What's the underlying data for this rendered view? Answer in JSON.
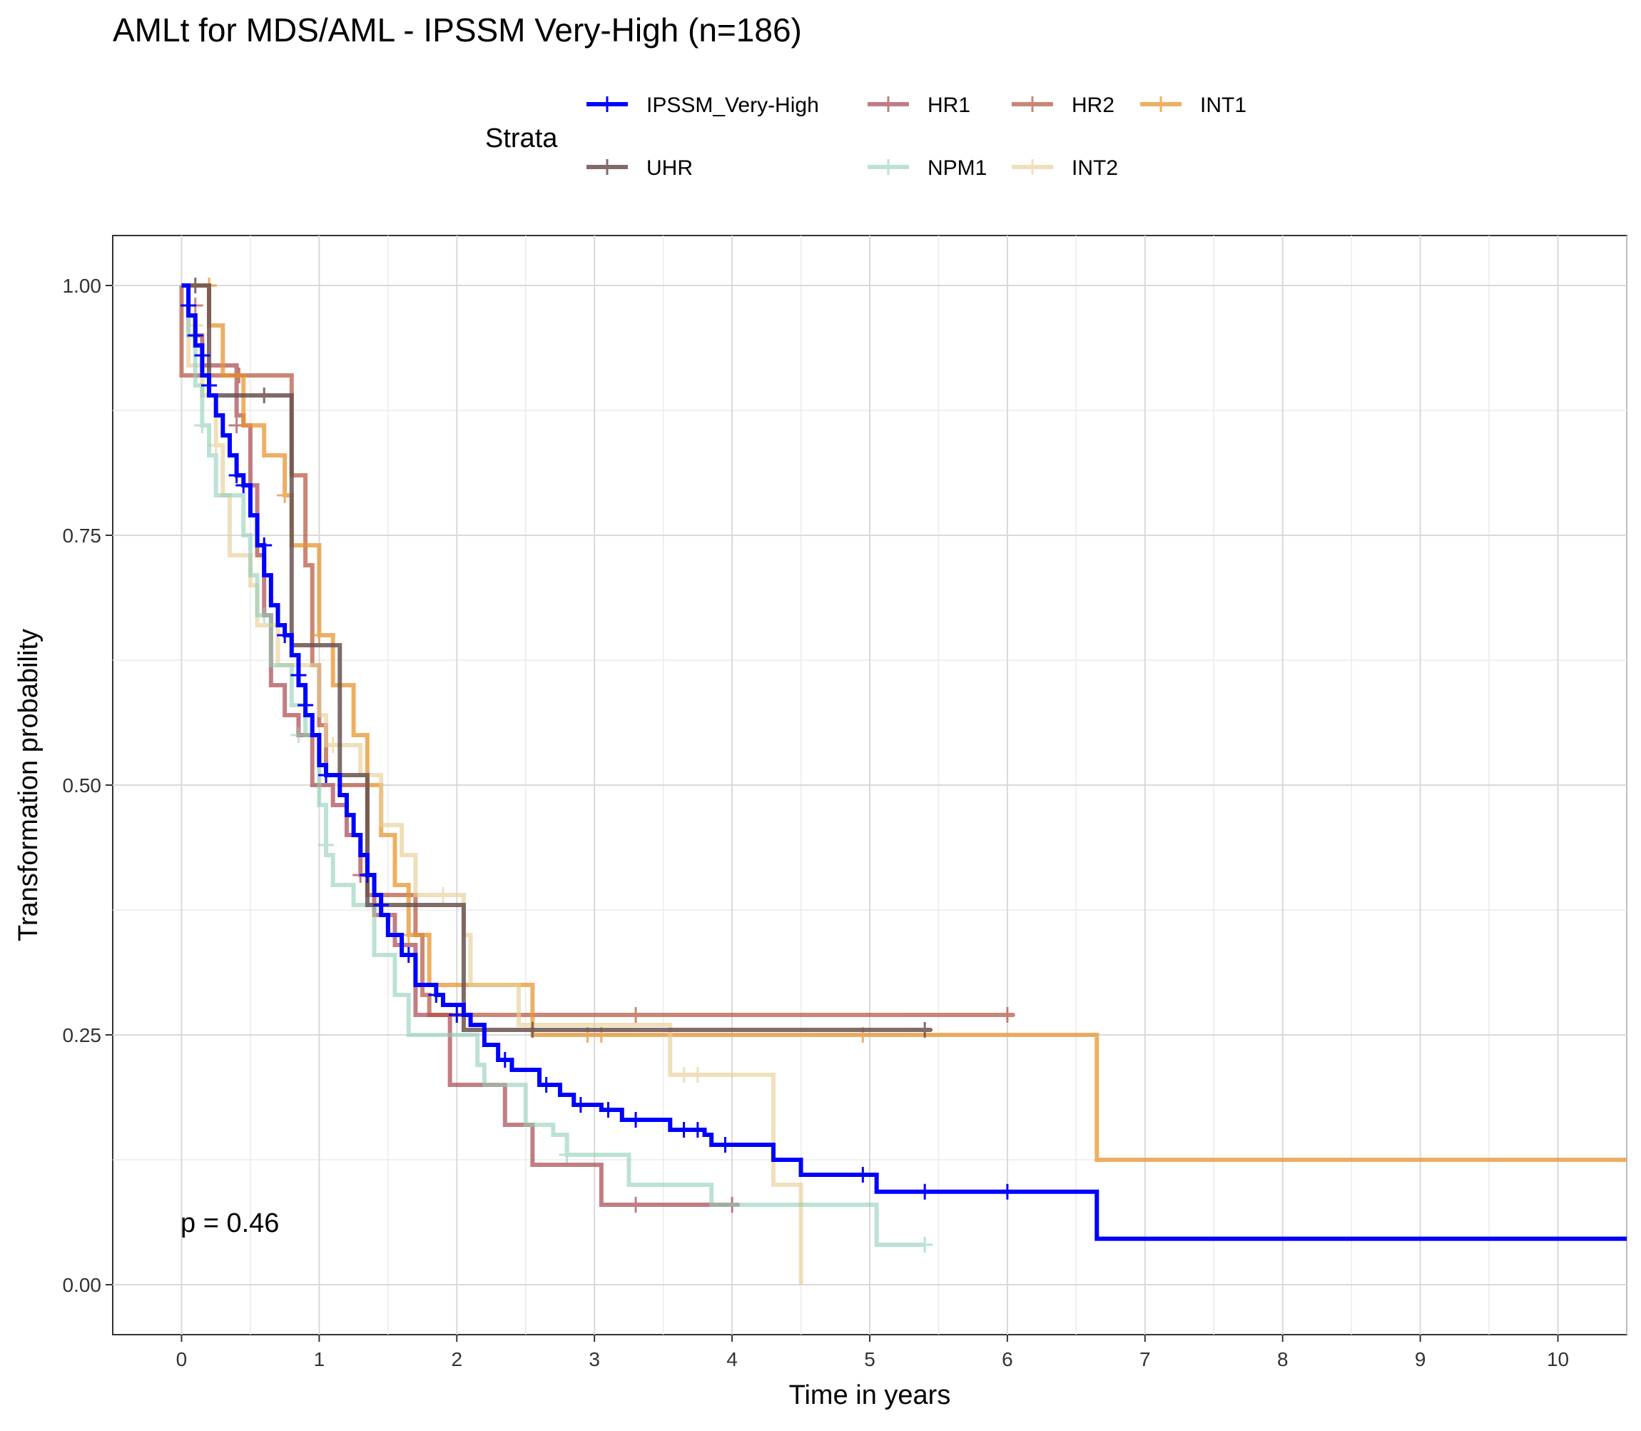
{
  "chart_data": {
    "type": "line",
    "title": "AMLt for MDS/AML - IPSSM Very-High (n=186)",
    "xlabel": "Time in years",
    "ylabel": "Transformation probability",
    "xlim": [
      -0.5,
      10.5
    ],
    "ylim": [
      -0.05,
      1.05
    ],
    "x_ticks": [
      0,
      1,
      2,
      3,
      4,
      5,
      6,
      7,
      8,
      9,
      10
    ],
    "y_ticks": [
      0,
      0.25,
      0.5,
      0.75,
      1
    ],
    "x_tick_labels": [
      "0",
      "1",
      "2",
      "3",
      "4",
      "5",
      "6",
      "7",
      "8",
      "9",
      "10"
    ],
    "y_tick_labels": [
      "0.00",
      "0.25",
      "0.50",
      "0.75",
      "1.00"
    ],
    "grid": true,
    "legend": {
      "title": "Strata",
      "position": "top"
    },
    "annotation": "p = 0.46",
    "series": [
      {
        "name": "HR1",
        "color": "#A8474F",
        "opacity": 0.7,
        "width": 6,
        "steps": [
          [
            0,
            1
          ],
          [
            0.05,
            0.97
          ],
          [
            0.1,
            0.95
          ],
          [
            0.15,
            0.92
          ],
          [
            0.4,
            0.87
          ],
          [
            0.45,
            0.86
          ],
          [
            0.5,
            0.8
          ],
          [
            0.55,
            0.73
          ],
          [
            0.6,
            0.67
          ],
          [
            0.65,
            0.6
          ],
          [
            0.75,
            0.57
          ],
          [
            0.85,
            0.55
          ],
          [
            0.95,
            0.5
          ],
          [
            1.1,
            0.48
          ],
          [
            1.2,
            0.45
          ],
          [
            1.3,
            0.41
          ],
          [
            1.4,
            0.37
          ],
          [
            1.55,
            0.34
          ],
          [
            1.7,
            0.27
          ],
          [
            1.95,
            0.2
          ],
          [
            2.35,
            0.16
          ],
          [
            2.55,
            0.12
          ],
          [
            3.05,
            0.08
          ],
          [
            4.05,
            0.08
          ]
        ],
        "censor": [
          [
            0.4,
            0.91
          ],
          [
            0.4,
            0.86
          ],
          [
            1.3,
            0.41
          ],
          [
            3.3,
            0.08
          ],
          [
            4,
            0.08
          ]
        ]
      },
      {
        "name": "HR2",
        "color": "#B5533C",
        "opacity": 0.7,
        "width": 6,
        "steps": [
          [
            0,
            1
          ],
          [
            0,
            0.91
          ],
          [
            0.15,
            0.91
          ],
          [
            0.35,
            0.91
          ],
          [
            0.75,
            0.91
          ],
          [
            0.8,
            0.81
          ],
          [
            0.9,
            0.72
          ],
          [
            0.95,
            0.62
          ],
          [
            1.0,
            0.56
          ],
          [
            1.05,
            0.51
          ],
          [
            1.15,
            0.5
          ],
          [
            1.35,
            0.39
          ],
          [
            1.55,
            0.39
          ],
          [
            1.7,
            0.35
          ],
          [
            1.75,
            0.29
          ],
          [
            1.8,
            0.27
          ],
          [
            6.05,
            0.27
          ]
        ],
        "censor": [
          [
            0.05,
            0.98
          ],
          [
            0.1,
            0.98
          ],
          [
            0.42,
            0.91
          ],
          [
            3.3,
            0.27
          ],
          [
            6.0,
            0.27
          ]
        ]
      },
      {
        "name": "INT1",
        "color": "#E89530",
        "opacity": 0.75,
        "width": 6,
        "steps": [
          [
            0,
            1
          ],
          [
            0.2,
            1
          ],
          [
            0.2,
            0.96
          ],
          [
            0.3,
            0.91
          ],
          [
            0.45,
            0.86
          ],
          [
            0.6,
            0.83
          ],
          [
            0.75,
            0.79
          ],
          [
            0.8,
            0.74
          ],
          [
            1.0,
            0.65
          ],
          [
            1.1,
            0.6
          ],
          [
            1.25,
            0.55
          ],
          [
            1.35,
            0.5
          ],
          [
            1.45,
            0.45
          ],
          [
            1.55,
            0.4
          ],
          [
            1.65,
            0.35
          ],
          [
            1.8,
            0.3
          ],
          [
            2.55,
            0.3
          ],
          [
            2.55,
            0.25
          ],
          [
            6.65,
            0.25
          ],
          [
            6.65,
            0.125
          ],
          [
            10.5,
            0.125
          ]
        ],
        "censor": [
          [
            0.2,
            1
          ],
          [
            0.75,
            0.79
          ],
          [
            1.0,
            0.65
          ],
          [
            1.65,
            0.35
          ],
          [
            2.95,
            0.25
          ],
          [
            3.05,
            0.25
          ],
          [
            4.95,
            0.25
          ]
        ]
      },
      {
        "name": "INT2",
        "color": "#E8CF98",
        "opacity": 0.65,
        "width": 6,
        "steps": [
          [
            0,
            1
          ],
          [
            0.05,
            0.92
          ],
          [
            0.15,
            0.89
          ],
          [
            0.25,
            0.84
          ],
          [
            0.3,
            0.79
          ],
          [
            0.35,
            0.73
          ],
          [
            0.5,
            0.7
          ],
          [
            0.55,
            0.66
          ],
          [
            0.7,
            0.62
          ],
          [
            1.0,
            0.57
          ],
          [
            1.05,
            0.54
          ],
          [
            1.3,
            0.51
          ],
          [
            1.45,
            0.46
          ],
          [
            1.6,
            0.43
          ],
          [
            1.7,
            0.39
          ],
          [
            2.05,
            0.35
          ],
          [
            2.1,
            0.3
          ],
          [
            2.45,
            0.26
          ],
          [
            3.55,
            0.26
          ],
          [
            3.55,
            0.21
          ],
          [
            4.3,
            0.21
          ],
          [
            4.3,
            0.1
          ],
          [
            4.5,
            0.1
          ],
          [
            4.5,
            0.0
          ]
        ],
        "censor": [
          [
            0.1,
            0.96
          ],
          [
            0.25,
            0.84
          ],
          [
            1.1,
            0.54
          ],
          [
            1.9,
            0.39
          ],
          [
            3.65,
            0.21
          ],
          [
            3.75,
            0.21
          ]
        ]
      },
      {
        "name": "NPM1",
        "color": "#90CFB7",
        "opacity": 0.6,
        "width": 6,
        "steps": [
          [
            0,
            1
          ],
          [
            0.05,
            0.95
          ],
          [
            0.1,
            0.9
          ],
          [
            0.15,
            0.86
          ],
          [
            0.2,
            0.83
          ],
          [
            0.25,
            0.79
          ],
          [
            0.45,
            0.75
          ],
          [
            0.5,
            0.71
          ],
          [
            0.55,
            0.67
          ],
          [
            0.65,
            0.62
          ],
          [
            0.8,
            0.58
          ],
          [
            0.9,
            0.55
          ],
          [
            1.0,
            0.48
          ],
          [
            1.05,
            0.43
          ],
          [
            1.1,
            0.4
          ],
          [
            1.25,
            0.38
          ],
          [
            1.4,
            0.33
          ],
          [
            1.55,
            0.29
          ],
          [
            1.65,
            0.25
          ],
          [
            2.1,
            0.25
          ],
          [
            2.15,
            0.22
          ],
          [
            2.2,
            0.2
          ],
          [
            2.5,
            0.16
          ],
          [
            2.7,
            0.15
          ],
          [
            2.8,
            0.13
          ],
          [
            3.25,
            0.1
          ],
          [
            3.85,
            0.08
          ],
          [
            5.05,
            0.08
          ],
          [
            5.05,
            0.04
          ],
          [
            5.4,
            0.04
          ]
        ],
        "censor": [
          [
            0.15,
            0.86
          ],
          [
            0.6,
            0.67
          ],
          [
            0.85,
            0.55
          ],
          [
            1.05,
            0.44
          ],
          [
            2.8,
            0.13
          ],
          [
            5.4,
            0.04
          ]
        ]
      },
      {
        "name": "UHR",
        "color": "#6A5250",
        "opacity": 0.85,
        "width": 6,
        "steps": [
          [
            0,
            1
          ],
          [
            0.2,
            1
          ],
          [
            0.2,
            0.89
          ],
          [
            0.75,
            0.89
          ],
          [
            0.8,
            0.64
          ],
          [
            1.1,
            0.64
          ],
          [
            1.15,
            0.51
          ],
          [
            1.3,
            0.51
          ],
          [
            1.35,
            0.38
          ],
          [
            2.05,
            0.38
          ],
          [
            2.05,
            0.255
          ],
          [
            5.45,
            0.255
          ]
        ],
        "censor": [
          [
            0.1,
            1
          ],
          [
            0.6,
            0.89
          ],
          [
            2.55,
            0.255
          ],
          [
            5.4,
            0.255
          ]
        ]
      },
      {
        "name": "IPSSM_Very-High",
        "color": "#0000FF",
        "opacity": 1,
        "width": 6,
        "steps": [
          [
            0,
            1
          ],
          [
            0.05,
            0.97
          ],
          [
            0.1,
            0.94
          ],
          [
            0.15,
            0.91
          ],
          [
            0.2,
            0.89
          ],
          [
            0.25,
            0.87
          ],
          [
            0.3,
            0.85
          ],
          [
            0.35,
            0.83
          ],
          [
            0.4,
            0.81
          ],
          [
            0.45,
            0.8
          ],
          [
            0.5,
            0.77
          ],
          [
            0.55,
            0.74
          ],
          [
            0.6,
            0.71
          ],
          [
            0.65,
            0.68
          ],
          [
            0.7,
            0.66
          ],
          [
            0.75,
            0.65
          ],
          [
            0.8,
            0.63
          ],
          [
            0.85,
            0.6
          ],
          [
            0.9,
            0.57
          ],
          [
            0.95,
            0.55
          ],
          [
            1.0,
            0.52
          ],
          [
            1.05,
            0.51
          ],
          [
            1.15,
            0.49
          ],
          [
            1.2,
            0.47
          ],
          [
            1.25,
            0.45
          ],
          [
            1.3,
            0.43
          ],
          [
            1.35,
            0.41
          ],
          [
            1.4,
            0.39
          ],
          [
            1.45,
            0.37
          ],
          [
            1.5,
            0.35
          ],
          [
            1.6,
            0.33
          ],
          [
            1.7,
            0.3
          ],
          [
            1.85,
            0.29
          ],
          [
            1.9,
            0.28
          ],
          [
            2.05,
            0.27
          ],
          [
            2.1,
            0.26
          ],
          [
            2.2,
            0.24
          ],
          [
            2.3,
            0.225
          ],
          [
            2.4,
            0.215
          ],
          [
            2.6,
            0.2
          ],
          [
            2.75,
            0.19
          ],
          [
            2.85,
            0.18
          ],
          [
            3.05,
            0.175
          ],
          [
            3.2,
            0.165
          ],
          [
            3.55,
            0.155
          ],
          [
            3.8,
            0.15
          ],
          [
            3.85,
            0.14
          ],
          [
            4.3,
            0.125
          ],
          [
            4.5,
            0.11
          ],
          [
            5.05,
            0.093
          ],
          [
            6.65,
            0.093
          ],
          [
            6.65,
            0.046
          ],
          [
            10.5,
            0.046
          ]
        ],
        "censor": [
          [
            0.05,
            0.98
          ],
          [
            0.1,
            0.95
          ],
          [
            0.15,
            0.93
          ],
          [
            0.2,
            0.9
          ],
          [
            0.4,
            0.81
          ],
          [
            0.45,
            0.8
          ],
          [
            0.6,
            0.74
          ],
          [
            0.75,
            0.65
          ],
          [
            0.85,
            0.61
          ],
          [
            0.9,
            0.58
          ],
          [
            1.05,
            0.51
          ],
          [
            1.35,
            0.41
          ],
          [
            1.45,
            0.38
          ],
          [
            1.65,
            0.33
          ],
          [
            1.85,
            0.29
          ],
          [
            2.0,
            0.27
          ],
          [
            2.35,
            0.225
          ],
          [
            2.65,
            0.2
          ],
          [
            2.9,
            0.18
          ],
          [
            3.1,
            0.175
          ],
          [
            3.3,
            0.165
          ],
          [
            3.65,
            0.155
          ],
          [
            3.75,
            0.155
          ],
          [
            3.95,
            0.14
          ],
          [
            4.95,
            0.11
          ],
          [
            5.4,
            0.093
          ],
          [
            6.0,
            0.093
          ]
        ]
      }
    ]
  },
  "legend_layout": [
    [
      "IPSSM_Very-High",
      "HR1",
      "HR2",
      "INT1"
    ],
    [
      "UHR",
      "NPM1",
      "INT2"
    ]
  ]
}
